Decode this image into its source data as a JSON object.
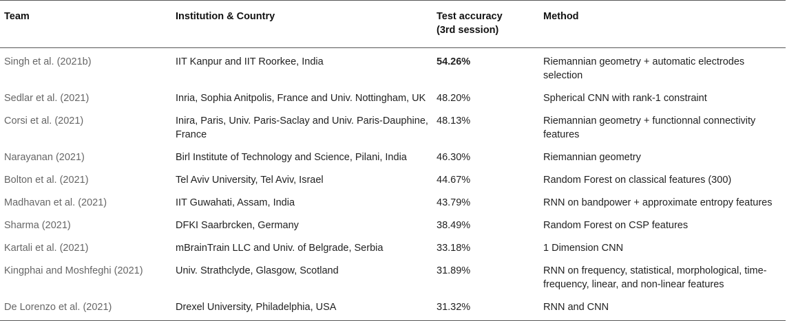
{
  "headers": [
    "Team",
    "Institution & Country",
    "Test accuracy (3rd session)",
    "Method"
  ],
  "rows": [
    {
      "team": "Singh et al. (2021b)",
      "institution": "IIT Kanpur and IIT Roorkee, India",
      "accuracy": "54.26%",
      "method": "Riemannian geometry + automatic electrodes selection"
    },
    {
      "team": "Sedlar et al. (2021)",
      "institution": "Inria, Sophia Anitpolis, France and Univ. Nottingham, UK",
      "accuracy": "48.20%",
      "method": "Spherical CNN with rank-1 constraint"
    },
    {
      "team": "Corsi et al. (2021)",
      "institution": "Inira, Paris, Univ. Paris-Saclay and Univ. Paris-Dauphine, France",
      "accuracy": "48.13%",
      "method": "Riemannian geometry + functionnal connectivity features"
    },
    {
      "team": "Narayanan (2021)",
      "institution": "Birl Institute of Technology and Science, Pilani, India",
      "accuracy": "46.30%",
      "method": "Riemannian geometry"
    },
    {
      "team": "Bolton et al. (2021)",
      "institution": "Tel Aviv University, Tel Aviv, Israel",
      "accuracy": "44.67%",
      "method": "Random Forest on classical features (300)"
    },
    {
      "team": "Madhavan et al. (2021)",
      "institution": "IIT Guwahati, Assam, India",
      "accuracy": "43.79%",
      "method": "RNN on bandpower + approximate entropy features"
    },
    {
      "team": "Sharma (2021)",
      "institution": "DFKI Saarbrcken, Germany",
      "accuracy": "38.49%",
      "method": "Random Forest on CSP features"
    },
    {
      "team": "Kartali et al. (2021)",
      "institution": "mBrainTrain LLC and Univ. of Belgrade, Serbia",
      "accuracy": "33.18%",
      "method": "1 Dimension CNN"
    },
    {
      "team": "Kingphai and Moshfeghi (2021)",
      "institution": "Univ. Strathclyde, Glasgow, Scotland",
      "accuracy": "31.89%",
      "method": "RNN on frequency, statistical, morphological, time-frequency, linear, and non-linear features"
    },
    {
      "team": "De Lorenzo et al. (2021)",
      "institution": "Drexel University, Philadelphia, USA",
      "accuracy": "31.32%",
      "method": "RNN and CNN"
    }
  ]
}
